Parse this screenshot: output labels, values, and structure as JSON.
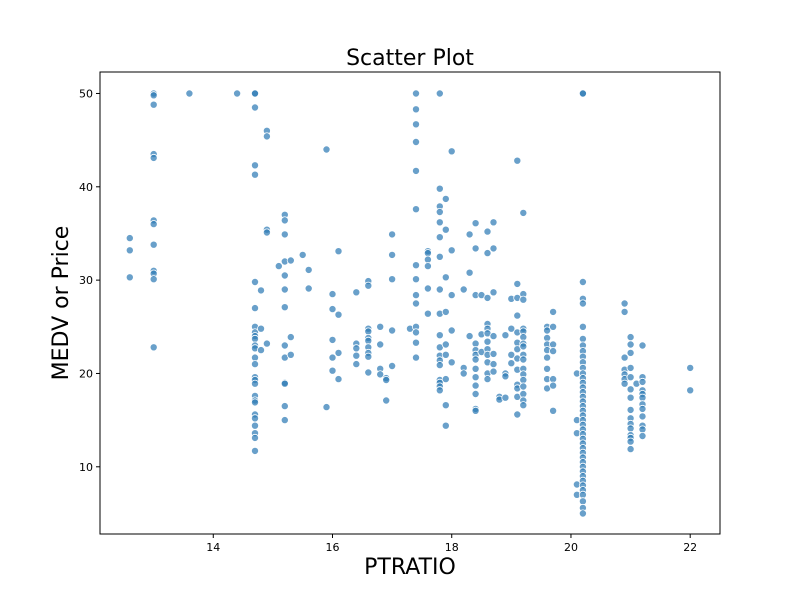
{
  "chart_data": {
    "type": "scatter",
    "title": "Scatter Plot",
    "xlabel": "PTRATIO",
    "ylabel": "MEDV or Price",
    "xlim": [
      12.1,
      22.5
    ],
    "ylim": [
      2.8,
      52.3
    ],
    "xticks": [
      14,
      16,
      18,
      20,
      22
    ],
    "yticks": [
      10,
      20,
      30,
      40,
      50
    ],
    "grid": false,
    "color": "#2f7bb5",
    "points": [
      [
        12.6,
        34.5
      ],
      [
        12.6,
        33.2
      ],
      [
        12.6,
        30.3
      ],
      [
        13.0,
        50.0
      ],
      [
        13.0,
        49.8
      ],
      [
        13.0,
        48.8
      ],
      [
        13.0,
        43.5
      ],
      [
        13.0,
        43.1
      ],
      [
        13.0,
        36.4
      ],
      [
        13.0,
        36.0
      ],
      [
        13.0,
        33.8
      ],
      [
        13.0,
        31.0
      ],
      [
        13.0,
        30.7
      ],
      [
        13.0,
        30.1
      ],
      [
        13.0,
        22.8
      ],
      [
        13.6,
        50.0
      ],
      [
        14.4,
        50.0
      ],
      [
        14.7,
        50.0
      ],
      [
        14.7,
        50.0
      ],
      [
        14.7,
        48.5
      ],
      [
        14.7,
        42.3
      ],
      [
        14.7,
        41.3
      ],
      [
        14.7,
        29.8
      ],
      [
        14.7,
        27.0
      ],
      [
        14.7,
        25.0
      ],
      [
        14.7,
        24.4
      ],
      [
        14.7,
        24.0
      ],
      [
        14.7,
        23.7
      ],
      [
        14.7,
        23.0
      ],
      [
        14.7,
        22.7
      ],
      [
        14.7,
        21.7
      ],
      [
        14.7,
        21.0
      ],
      [
        14.7,
        19.6
      ],
      [
        14.7,
        19.3
      ],
      [
        14.7,
        18.9
      ],
      [
        14.7,
        17.6
      ],
      [
        14.7,
        17.1
      ],
      [
        14.7,
        16.9
      ],
      [
        14.7,
        15.6
      ],
      [
        14.7,
        15.2
      ],
      [
        14.7,
        14.4
      ],
      [
        14.7,
        13.6
      ],
      [
        14.7,
        13.1
      ],
      [
        14.7,
        11.7
      ],
      [
        14.8,
        28.9
      ],
      [
        14.8,
        24.8
      ],
      [
        14.8,
        22.5
      ],
      [
        14.9,
        46.0
      ],
      [
        14.9,
        45.4
      ],
      [
        14.9,
        35.4
      ],
      [
        14.9,
        35.1
      ],
      [
        14.9,
        23.2
      ],
      [
        15.1,
        31.5
      ],
      [
        15.2,
        37.0
      ],
      [
        15.2,
        36.4
      ],
      [
        15.2,
        34.9
      ],
      [
        15.2,
        32.0
      ],
      [
        15.2,
        30.5
      ],
      [
        15.2,
        29.0
      ],
      [
        15.2,
        27.1
      ],
      [
        15.2,
        23.0
      ],
      [
        15.2,
        21.7
      ],
      [
        15.2,
        19.0
      ],
      [
        15.2,
        18.9
      ],
      [
        15.2,
        16.5
      ],
      [
        15.2,
        15.0
      ],
      [
        15.3,
        32.1
      ],
      [
        15.3,
        23.9
      ],
      [
        15.3,
        22.0
      ],
      [
        15.5,
        32.7
      ],
      [
        15.6,
        31.1
      ],
      [
        15.6,
        29.1
      ],
      [
        15.9,
        44.0
      ],
      [
        15.9,
        16.4
      ],
      [
        16.0,
        28.5
      ],
      [
        16.0,
        26.9
      ],
      [
        16.0,
        23.6
      ],
      [
        16.0,
        21.7
      ],
      [
        16.0,
        20.3
      ],
      [
        16.1,
        33.1
      ],
      [
        16.1,
        26.3
      ],
      [
        16.1,
        22.2
      ],
      [
        16.1,
        19.4
      ],
      [
        16.4,
        28.7
      ],
      [
        16.4,
        23.2
      ],
      [
        16.4,
        22.7
      ],
      [
        16.4,
        21.9
      ],
      [
        16.4,
        21.0
      ],
      [
        16.6,
        29.9
      ],
      [
        16.6,
        29.4
      ],
      [
        16.6,
        24.8
      ],
      [
        16.6,
        24.5
      ],
      [
        16.6,
        23.8
      ],
      [
        16.6,
        23.5
      ],
      [
        16.6,
        22.8
      ],
      [
        16.6,
        22.2
      ],
      [
        16.6,
        21.8
      ],
      [
        16.6,
        20.1
      ],
      [
        16.8,
        25.0
      ],
      [
        16.8,
        23.1
      ],
      [
        16.8,
        20.5
      ],
      [
        16.8,
        19.9
      ],
      [
        16.9,
        19.5
      ],
      [
        16.9,
        19.3
      ],
      [
        16.9,
        17.1
      ],
      [
        17.0,
        34.9
      ],
      [
        17.0,
        32.7
      ],
      [
        17.0,
        30.1
      ],
      [
        17.0,
        24.6
      ],
      [
        17.0,
        20.8
      ],
      [
        17.3,
        24.8
      ],
      [
        17.4,
        50.0
      ],
      [
        17.4,
        48.3
      ],
      [
        17.4,
        46.7
      ],
      [
        17.4,
        44.8
      ],
      [
        17.4,
        41.7
      ],
      [
        17.4,
        37.6
      ],
      [
        17.4,
        31.6
      ],
      [
        17.4,
        30.1
      ],
      [
        17.4,
        28.4
      ],
      [
        17.4,
        27.5
      ],
      [
        17.4,
        25.0
      ],
      [
        17.4,
        24.4
      ],
      [
        17.4,
        23.3
      ],
      [
        17.4,
        21.7
      ],
      [
        17.6,
        33.1
      ],
      [
        17.6,
        32.9
      ],
      [
        17.6,
        32.2
      ],
      [
        17.6,
        31.5
      ],
      [
        17.6,
        29.1
      ],
      [
        17.6,
        26.4
      ],
      [
        17.8,
        50.0
      ],
      [
        17.8,
        39.8
      ],
      [
        17.8,
        37.9
      ],
      [
        17.8,
        37.3
      ],
      [
        17.8,
        36.2
      ],
      [
        17.8,
        34.6
      ],
      [
        17.8,
        32.5
      ],
      [
        17.8,
        29.0
      ],
      [
        17.8,
        26.4
      ],
      [
        17.8,
        24.1
      ],
      [
        17.8,
        22.8
      ],
      [
        17.8,
        21.9
      ],
      [
        17.8,
        21.4
      ],
      [
        17.8,
        20.9
      ],
      [
        17.8,
        19.3
      ],
      [
        17.8,
        19.0
      ],
      [
        17.8,
        18.6
      ],
      [
        17.8,
        18.2
      ],
      [
        17.9,
        38.7
      ],
      [
        17.9,
        35.4
      ],
      [
        17.9,
        30.3
      ],
      [
        17.9,
        26.6
      ],
      [
        17.9,
        23.1
      ],
      [
        17.9,
        22.0
      ],
      [
        17.9,
        19.4
      ],
      [
        17.9,
        16.6
      ],
      [
        17.9,
        14.4
      ],
      [
        18.0,
        43.8
      ],
      [
        18.0,
        33.2
      ],
      [
        18.0,
        28.4
      ],
      [
        18.0,
        24.6
      ],
      [
        18.0,
        21.2
      ],
      [
        18.2,
        29.0
      ],
      [
        18.2,
        20.6
      ],
      [
        18.2,
        20.0
      ],
      [
        18.3,
        34.9
      ],
      [
        18.3,
        30.8
      ],
      [
        18.3,
        24.0
      ],
      [
        18.4,
        36.1
      ],
      [
        18.4,
        33.4
      ],
      [
        18.4,
        28.4
      ],
      [
        18.4,
        23.2
      ],
      [
        18.4,
        22.5
      ],
      [
        18.4,
        22.0
      ],
      [
        18.4,
        21.5
      ],
      [
        18.4,
        20.5
      ],
      [
        18.4,
        19.6
      ],
      [
        18.4,
        18.7
      ],
      [
        18.4,
        17.8
      ],
      [
        18.4,
        16.2
      ],
      [
        18.4,
        16.0
      ],
      [
        18.5,
        28.4
      ],
      [
        18.5,
        24.2
      ],
      [
        18.5,
        22.3
      ],
      [
        18.6,
        35.2
      ],
      [
        18.6,
        32.9
      ],
      [
        18.6,
        28.1
      ],
      [
        18.6,
        25.3
      ],
      [
        18.6,
        24.8
      ],
      [
        18.6,
        24.3
      ],
      [
        18.6,
        23.4
      ],
      [
        18.6,
        22.6
      ],
      [
        18.6,
        22.0
      ],
      [
        18.6,
        21.2
      ],
      [
        18.6,
        20.0
      ],
      [
        18.6,
        19.4
      ],
      [
        18.7,
        36.2
      ],
      [
        18.7,
        33.4
      ],
      [
        18.7,
        28.7
      ],
      [
        18.7,
        24.0
      ],
      [
        18.7,
        22.1
      ],
      [
        18.7,
        21.0
      ],
      [
        18.7,
        20.2
      ],
      [
        18.8,
        17.5
      ],
      [
        18.8,
        17.2
      ],
      [
        18.9,
        24.1
      ],
      [
        18.9,
        20.0
      ],
      [
        18.9,
        19.7
      ],
      [
        18.9,
        17.4
      ],
      [
        19.0,
        28.0
      ],
      [
        19.0,
        24.8
      ],
      [
        19.0,
        22.0
      ],
      [
        19.0,
        21.1
      ],
      [
        19.1,
        42.8
      ],
      [
        19.1,
        29.6
      ],
      [
        19.1,
        28.1
      ],
      [
        19.1,
        26.2
      ],
      [
        19.1,
        24.4
      ],
      [
        19.1,
        23.3
      ],
      [
        19.1,
        22.6
      ],
      [
        19.1,
        21.6
      ],
      [
        19.1,
        20.4
      ],
      [
        19.1,
        18.8
      ],
      [
        19.1,
        18.4
      ],
      [
        19.1,
        17.5
      ],
      [
        19.1,
        15.6
      ],
      [
        19.2,
        37.2
      ],
      [
        19.2,
        28.5
      ],
      [
        19.2,
        27.9
      ],
      [
        19.2,
        24.8
      ],
      [
        19.2,
        24.5
      ],
      [
        19.2,
        23.9
      ],
      [
        19.2,
        23.2
      ],
      [
        19.2,
        22.9
      ],
      [
        19.2,
        22.0
      ],
      [
        19.2,
        21.5
      ],
      [
        19.2,
        20.5
      ],
      [
        19.2,
        19.9
      ],
      [
        19.2,
        19.3
      ],
      [
        19.2,
        18.6
      ],
      [
        19.2,
        17.8
      ],
      [
        19.2,
        17.1
      ],
      [
        19.2,
        16.6
      ],
      [
        19.6,
        25.0
      ],
      [
        19.6,
        24.6
      ],
      [
        19.6,
        23.8
      ],
      [
        19.6,
        23.1
      ],
      [
        19.6,
        22.5
      ],
      [
        19.6,
        21.7
      ],
      [
        19.6,
        20.5
      ],
      [
        19.6,
        19.4
      ],
      [
        19.6,
        18.4
      ],
      [
        19.7,
        26.6
      ],
      [
        19.7,
        25.0
      ],
      [
        19.7,
        23.1
      ],
      [
        19.7,
        22.4
      ],
      [
        19.7,
        19.4
      ],
      [
        19.7,
        18.7
      ],
      [
        19.7,
        16.0
      ],
      [
        20.1,
        20.0
      ],
      [
        20.1,
        15.0
      ],
      [
        20.1,
        13.6
      ],
      [
        20.1,
        8.1
      ],
      [
        20.1,
        7.0
      ],
      [
        20.2,
        50.0
      ],
      [
        20.2,
        50.0
      ],
      [
        20.2,
        29.8
      ],
      [
        20.2,
        28.0
      ],
      [
        20.2,
        27.5
      ],
      [
        20.2,
        25.0
      ],
      [
        20.2,
        23.7
      ],
      [
        20.2,
        23.0
      ],
      [
        20.2,
        22.4
      ],
      [
        20.2,
        21.8
      ],
      [
        20.2,
        21.2
      ],
      [
        20.2,
        20.6
      ],
      [
        20.2,
        20.0
      ],
      [
        20.2,
        19.5
      ],
      [
        20.2,
        19.0
      ],
      [
        20.2,
        18.5
      ],
      [
        20.2,
        18.0
      ],
      [
        20.2,
        17.5
      ],
      [
        20.2,
        17.0
      ],
      [
        20.2,
        16.5
      ],
      [
        20.2,
        16.0
      ],
      [
        20.2,
        15.5
      ],
      [
        20.2,
        15.0
      ],
      [
        20.2,
        14.5
      ],
      [
        20.2,
        14.0
      ],
      [
        20.2,
        13.5
      ],
      [
        20.2,
        13.0
      ],
      [
        20.2,
        12.5
      ],
      [
        20.2,
        12.0
      ],
      [
        20.2,
        11.5
      ],
      [
        20.2,
        11.0
      ],
      [
        20.2,
        10.5
      ],
      [
        20.2,
        10.0
      ],
      [
        20.2,
        9.5
      ],
      [
        20.2,
        9.0
      ],
      [
        20.2,
        8.5
      ],
      [
        20.2,
        8.0
      ],
      [
        20.2,
        7.5
      ],
      [
        20.2,
        7.0
      ],
      [
        20.2,
        6.3
      ],
      [
        20.2,
        5.6
      ],
      [
        20.2,
        5.0
      ],
      [
        20.9,
        27.5
      ],
      [
        20.9,
        26.6
      ],
      [
        20.9,
        21.7
      ],
      [
        20.9,
        20.4
      ],
      [
        20.9,
        19.9
      ],
      [
        20.9,
        19.4
      ],
      [
        20.9,
        18.9
      ],
      [
        21.0,
        23.9
      ],
      [
        21.0,
        23.1
      ],
      [
        21.0,
        22.2
      ],
      [
        21.0,
        20.6
      ],
      [
        21.0,
        19.6
      ],
      [
        21.0,
        18.3
      ],
      [
        21.0,
        17.4
      ],
      [
        21.0,
        16.1
      ],
      [
        21.0,
        15.2
      ],
      [
        21.0,
        14.6
      ],
      [
        21.0,
        14.1
      ],
      [
        21.0,
        13.4
      ],
      [
        21.0,
        13.1
      ],
      [
        21.0,
        12.7
      ],
      [
        21.0,
        11.9
      ],
      [
        21.1,
        18.9
      ],
      [
        21.2,
        23.0
      ],
      [
        21.2,
        19.6
      ],
      [
        21.2,
        19.1
      ],
      [
        21.2,
        18.2
      ],
      [
        21.2,
        17.8
      ],
      [
        21.2,
        17.4
      ],
      [
        21.2,
        16.7
      ],
      [
        21.2,
        16.2
      ],
      [
        21.2,
        15.4
      ],
      [
        21.2,
        14.4
      ],
      [
        21.2,
        14.0
      ],
      [
        21.2,
        13.3
      ],
      [
        22.0,
        20.6
      ],
      [
        22.0,
        18.2
      ]
    ]
  }
}
